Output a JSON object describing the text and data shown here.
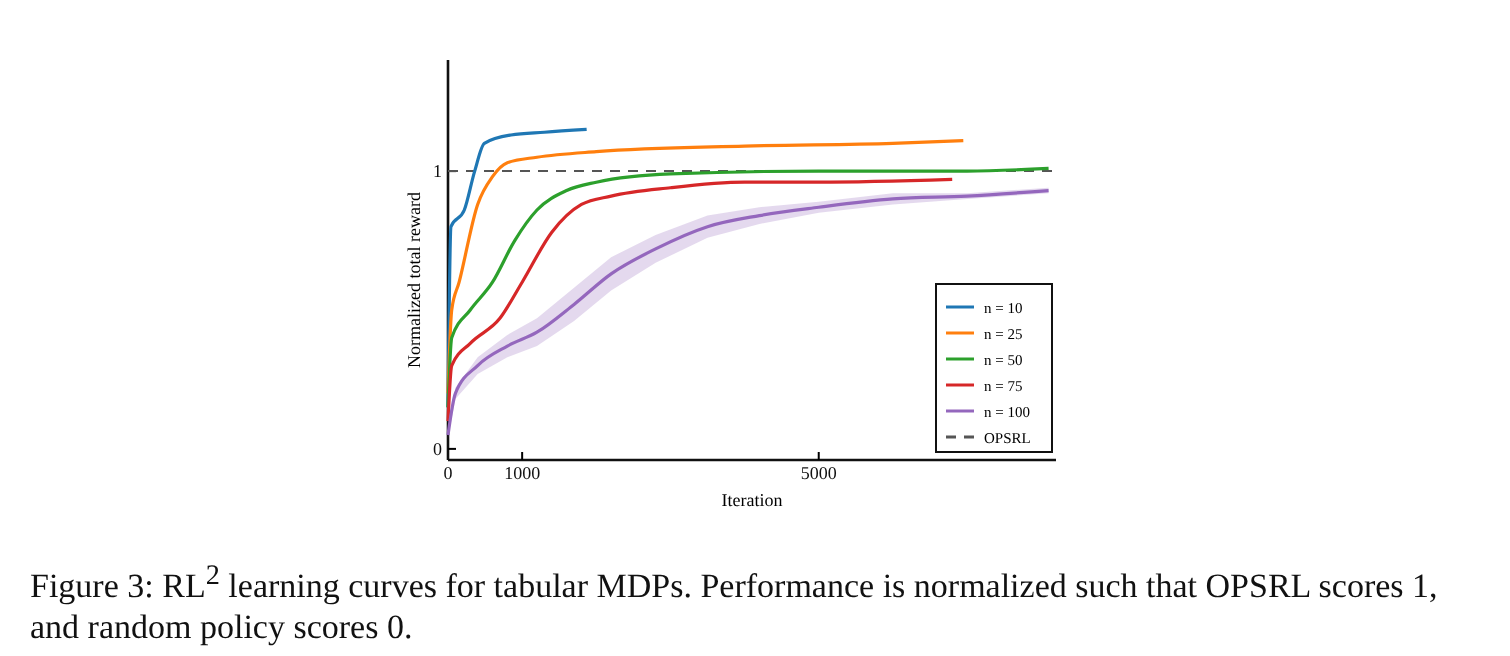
{
  "chart_data": {
    "type": "line",
    "xlabel": "Iteration",
    "ylabel": "Normalized total reward",
    "xlim": [
      0,
      8200
    ],
    "ylim": [
      -0.04,
      1.4
    ],
    "xticks": [
      0,
      1000,
      5000
    ],
    "yticks": [
      0,
      1
    ],
    "grid": false,
    "legend": "bottom right",
    "line_style": "solid",
    "marker": "none",
    "series": [
      {
        "name": "n = 10",
        "color": "#1f77b4",
        "x": [
          0,
          40,
          220,
          360,
          490,
          850,
          1300,
          1870
        ],
        "values": [
          0.15,
          0.8,
          0.86,
          1.0,
          1.1,
          1.13,
          1.14,
          1.15
        ]
      },
      {
        "name": "n = 25",
        "color": "#ff7f0e",
        "x": [
          0,
          50,
          150,
          400,
          600,
          800,
          1200,
          2000,
          4000,
          6000,
          6950
        ],
        "values": [
          0.2,
          0.5,
          0.6,
          0.88,
          0.98,
          1.03,
          1.05,
          1.07,
          1.09,
          1.1,
          1.11
        ]
      },
      {
        "name": "n = 50",
        "color": "#2ca02c",
        "x": [
          0,
          50,
          300,
          600,
          900,
          1200,
          1600,
          2000,
          3000,
          5000,
          7000,
          8100
        ],
        "values": [
          0.15,
          0.4,
          0.5,
          0.6,
          0.75,
          0.86,
          0.93,
          0.96,
          0.99,
          1.0,
          1.0,
          1.01
        ]
      },
      {
        "name": "n = 75",
        "color": "#d62728",
        "x": [
          0,
          50,
          300,
          700,
          1000,
          1400,
          1800,
          2200,
          3000,
          4000,
          5000,
          6800
        ],
        "values": [
          0.1,
          0.3,
          0.38,
          0.47,
          0.6,
          0.78,
          0.88,
          0.91,
          0.94,
          0.96,
          0.96,
          0.97
        ]
      },
      {
        "name": "n = 100",
        "color": "#9467bd",
        "x": [
          0,
          100,
          400,
          800,
          1200,
          1700,
          2200,
          2800,
          3500,
          4200,
          5000,
          6000,
          7000,
          8100
        ],
        "values": [
          0.05,
          0.2,
          0.3,
          0.37,
          0.42,
          0.52,
          0.63,
          0.72,
          0.8,
          0.84,
          0.87,
          0.9,
          0.91,
          0.93
        ],
        "lower": [
          0.04,
          0.18,
          0.27,
          0.33,
          0.37,
          0.46,
          0.57,
          0.67,
          0.76,
          0.81,
          0.85,
          0.88,
          0.9,
          0.92
        ],
        "upper": [
          0.06,
          0.22,
          0.33,
          0.41,
          0.47,
          0.58,
          0.69,
          0.77,
          0.84,
          0.87,
          0.89,
          0.92,
          0.92,
          0.94
        ]
      }
    ],
    "ref_lines": [
      {
        "axis": "y",
        "value": 1,
        "label": "OPSRL",
        "color": "#555555",
        "line_style": "dashed"
      }
    ],
    "annotations": [
      "Figure 3: RL$^{2}$ learning curves for tabular MDPs.  Performance is normalized such that OPSRL scores 1, and random policy scores 0."
    ]
  }
}
